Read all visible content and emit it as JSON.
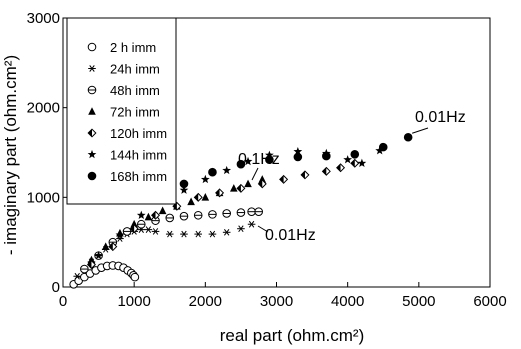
{
  "chart_data": {
    "type": "scatter",
    "title": "",
    "xlabel": "real part (ohm.cm²)",
    "ylabel": "- imaginary part (ohm.cm²)",
    "xlim": [
      0,
      6000
    ],
    "ylim": [
      0,
      3000
    ],
    "x_ticks": [
      0,
      1000,
      2000,
      3000,
      4000,
      5000,
      6000
    ],
    "y_ticks": [
      0,
      1000,
      2000,
      3000
    ],
    "grid": false,
    "legend_position": "top-left",
    "series": [
      {
        "name": "2 h imm",
        "marker": "circle-open",
        "x": [
          150,
          220,
          300,
          380,
          460,
          540,
          620,
          700,
          780,
          850,
          910,
          960,
          990,
          1010
        ],
        "y": [
          30,
          70,
          110,
          150,
          185,
          215,
          235,
          240,
          235,
          215,
          185,
          155,
          130,
          110
        ]
      },
      {
        "name": "24h imm",
        "marker": "asterisk",
        "x": [
          200,
          300,
          400,
          500,
          600,
          700,
          800,
          900,
          1000,
          1100,
          1200,
          1300,
          1500,
          1700,
          1900,
          2100,
          2300,
          2500,
          2650
        ],
        "y": [
          120,
          200,
          280,
          350,
          420,
          480,
          540,
          590,
          620,
          640,
          640,
          620,
          590,
          590,
          590,
          590,
          610,
          650,
          700
        ]
      },
      {
        "name": "48h imm",
        "marker": "circle-bar",
        "x": [
          300,
          500,
          700,
          900,
          1100,
          1300,
          1500,
          1700,
          1900,
          2100,
          2300,
          2500,
          2650,
          2750
        ],
        "y": [
          200,
          350,
          500,
          620,
          700,
          740,
          770,
          790,
          800,
          810,
          820,
          830,
          840,
          840
        ]
      },
      {
        "name": "72h imm",
        "marker": "triangle",
        "x": [
          400,
          600,
          800,
          1000,
          1200,
          1400,
          1600,
          1800,
          2000,
          2200,
          2400,
          2600,
          2800
        ],
        "y": [
          300,
          450,
          600,
          700,
          780,
          850,
          900,
          950,
          1000,
          1050,
          1100,
          1150,
          1200
        ]
      },
      {
        "name": "120h imm",
        "marker": "diamond-half",
        "x": [
          400,
          700,
          1000,
          1300,
          1600,
          1900,
          2200,
          2500,
          2800,
          3100,
          3400,
          3700,
          3900,
          4100
        ],
        "y": [
          250,
          450,
          650,
          800,
          900,
          1000,
          1050,
          1100,
          1150,
          1200,
          1250,
          1290,
          1330,
          1380
        ]
      },
      {
        "name": "144h imm",
        "marker": "star",
        "x": [
          500,
          800,
          1100,
          1400,
          1700,
          2000,
          2300,
          2600,
          2900,
          3300,
          3700,
          4000,
          4200,
          4450
        ],
        "y": [
          350,
          580,
          800,
          960,
          1080,
          1200,
          1300,
          1400,
          1470,
          1510,
          1490,
          1420,
          1380,
          1520
        ]
      },
      {
        "name": "168h imm",
        "marker": "circle-filled",
        "x": [
          1300,
          1700,
          2100,
          2500,
          2900,
          3300,
          3700,
          4100,
          4500,
          4850
        ],
        "y": [
          1000,
          1150,
          1280,
          1370,
          1420,
          1450,
          1460,
          1480,
          1560,
          1670
        ]
      }
    ],
    "annotations": [
      {
        "text": "0.01Hz",
        "x": 4850,
        "y": 1670
      },
      {
        "text": "0.1Hz",
        "x": 2700,
        "y": 1350
      },
      {
        "text": "0.01Hz",
        "x": 2650,
        "y": 700
      }
    ]
  }
}
